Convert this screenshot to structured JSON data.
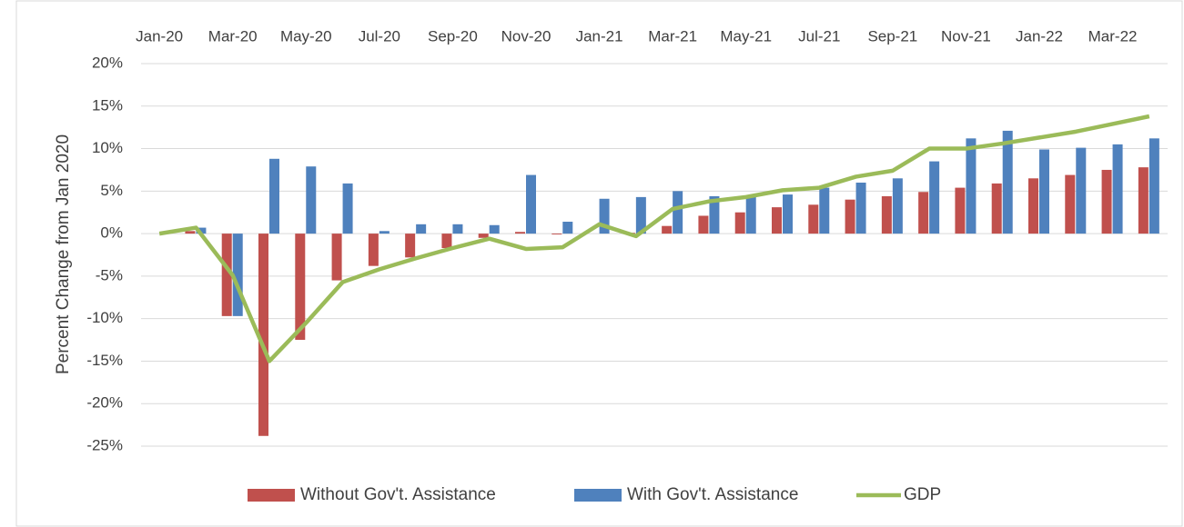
{
  "chart_data": {
    "type": "bar-line",
    "y_label": "Percent Change from Jan 2020",
    "categories": [
      "Jan-20",
      null,
      "Mar-20",
      null,
      "May-20",
      null,
      "Jul-20",
      null,
      "Sep-20",
      null,
      "Nov-20",
      null,
      "Jan-21",
      null,
      "Mar-21",
      null,
      "May-21",
      null,
      "Jul-21",
      null,
      "Sep-21",
      null,
      "Nov-21",
      null,
      "Jan-22",
      null,
      "Mar-22",
      null
    ],
    "series": [
      {
        "name": "Without Gov't. Assistance",
        "type": "bar",
        "color": "#c0504d",
        "values": [
          0,
          0.3,
          -9.7,
          -23.8,
          -12.5,
          -5.5,
          -3.8,
          -2.8,
          -1.7,
          -0.5,
          0.2,
          -0.1,
          0,
          0.1,
          0.9,
          2.1,
          2.5,
          3.1,
          3.4,
          4.0,
          4.4,
          4.9,
          5.4,
          5.9,
          6.5,
          6.9,
          7.5,
          7.8
        ]
      },
      {
        "name": "With Gov't. Assistance",
        "type": "bar",
        "color": "#4f81bd",
        "values": [
          0,
          0.7,
          -9.7,
          8.8,
          7.9,
          5.9,
          0.3,
          1.1,
          1.1,
          1.0,
          6.9,
          1.4,
          4.1,
          4.3,
          5.0,
          4.4,
          4.4,
          4.6,
          5.4,
          6.0,
          6.5,
          8.5,
          11.2,
          12.1,
          9.9,
          10.1,
          10.5,
          11.2
        ]
      },
      {
        "name": "GDP",
        "type": "line",
        "color": "#9bbb59",
        "values": [
          0,
          0.7,
          -4.9,
          -15.0,
          -10.5,
          -5.7,
          -4.2,
          -2.9,
          -1.7,
          -0.6,
          -1.8,
          -1.6,
          1.1,
          -0.3,
          2.9,
          3.8,
          4.3,
          5.1,
          5.4,
          6.7,
          7.4,
          10.0,
          10.0,
          10.6,
          11.3,
          12.0,
          12.9,
          13.8
        ]
      }
    ],
    "ylim": [
      -25,
      20
    ],
    "yticks": [
      {
        "value": -25,
        "label": "-25%"
      },
      {
        "value": -20,
        "label": "-20%"
      },
      {
        "value": -15,
        "label": "-15%"
      },
      {
        "value": -10,
        "label": "-10%"
      },
      {
        "value": -5,
        "label": "-5%"
      },
      {
        "value": 0,
        "label": "0%"
      },
      {
        "value": 5,
        "label": "5%"
      },
      {
        "value": 10,
        "label": "10%"
      },
      {
        "value": 15,
        "label": "15%"
      },
      {
        "value": 20,
        "label": "20%"
      }
    ],
    "grid": true,
    "legend": "bottom"
  }
}
